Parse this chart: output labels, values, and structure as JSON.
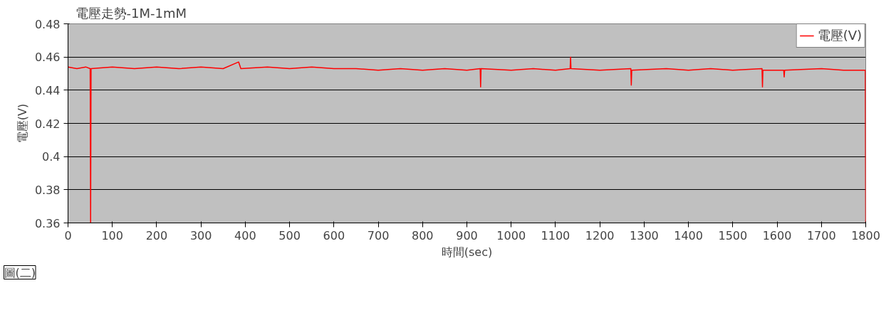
{
  "chart_data": {
    "type": "line",
    "title": "電壓走勢-1M-1mM",
    "xlabel": "時間(sec)",
    "ylabel": "電壓(V)",
    "annotations": [
      "圖(二)"
    ],
    "x": [
      0,
      20,
      40,
      50,
      51,
      52,
      100,
      150,
      200,
      250,
      300,
      350,
      385,
      390,
      450,
      500,
      550,
      600,
      650,
      700,
      750,
      800,
      850,
      900,
      930,
      931,
      932,
      1000,
      1050,
      1100,
      1133,
      1134,
      1135,
      1200,
      1270,
      1271,
      1272,
      1350,
      1400,
      1450,
      1500,
      1566,
      1567,
      1568,
      1615,
      1616,
      1617,
      1700,
      1750,
      1799,
      1800
    ],
    "series": [
      {
        "name": "電壓(V)",
        "color": "#ff0000",
        "values": [
          0.454,
          0.453,
          0.454,
          0.453,
          0.36,
          0.453,
          0.454,
          0.453,
          0.454,
          0.453,
          0.454,
          0.453,
          0.457,
          0.453,
          0.454,
          0.453,
          0.454,
          0.453,
          0.453,
          0.452,
          0.453,
          0.452,
          0.453,
          0.452,
          0.453,
          0.442,
          0.453,
          0.452,
          0.453,
          0.452,
          0.453,
          0.46,
          0.453,
          0.452,
          0.453,
          0.443,
          0.452,
          0.453,
          0.452,
          0.453,
          0.452,
          0.453,
          0.442,
          0.452,
          0.452,
          0.448,
          0.452,
          0.453,
          0.452,
          0.452,
          0.36
        ]
      }
    ],
    "xlim": [
      0,
      1800
    ],
    "xticks": [
      0,
      100,
      200,
      300,
      400,
      500,
      600,
      700,
      800,
      900,
      1000,
      1100,
      1200,
      1300,
      1400,
      1500,
      1600,
      1700,
      1800
    ],
    "ylim": [
      0.36,
      0.48
    ],
    "yticks": [
      0.36,
      0.38,
      0.4,
      0.42,
      0.44,
      0.46,
      0.48
    ],
    "grid": "y",
    "legend": "top right",
    "line_style": "solid",
    "marker": "none"
  }
}
